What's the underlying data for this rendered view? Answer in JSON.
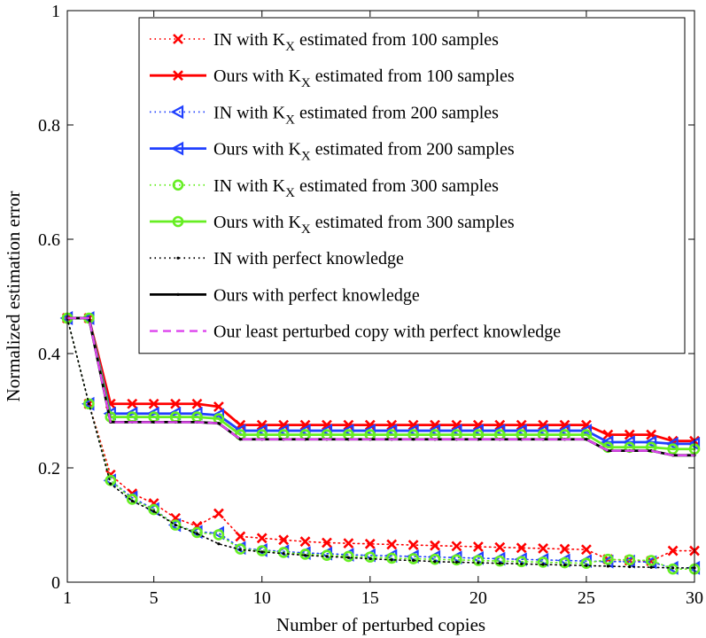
{
  "chart_data": {
    "type": "line",
    "xlabel": "Number of perturbed copies",
    "ylabel": "Normalized estimation error",
    "xlim": [
      1,
      30
    ],
    "ylim": [
      0,
      1
    ],
    "xticks": [
      1,
      5,
      10,
      15,
      20,
      25,
      30
    ],
    "yticks": [
      0,
      0.2,
      0.4,
      0.6,
      0.8,
      1
    ],
    "ytick_labels": [
      "0",
      "0.2",
      "0.4",
      "0.6",
      "0.8",
      "1"
    ],
    "legend_position": "top-right",
    "x": [
      1,
      2,
      3,
      4,
      5,
      6,
      7,
      8,
      9,
      10,
      11,
      12,
      13,
      14,
      15,
      16,
      17,
      18,
      19,
      20,
      21,
      22,
      23,
      24,
      25,
      26,
      27,
      28,
      29,
      30
    ],
    "series": [
      {
        "legend": {
          "pre": "IN with K",
          "sub": "X",
          "post": " estimated from 100 samples"
        },
        "color": "#ff0000",
        "style": "dotted",
        "marker": "x",
        "values": [
          0.462,
          0.312,
          0.188,
          0.155,
          0.138,
          0.112,
          0.098,
          0.12,
          0.08,
          0.077,
          0.074,
          0.071,
          0.069,
          0.068,
          0.067,
          0.066,
          0.065,
          0.064,
          0.063,
          0.062,
          0.061,
          0.06,
          0.059,
          0.058,
          0.057,
          0.04,
          0.038,
          0.037,
          0.055,
          0.055
        ]
      },
      {
        "legend": {
          "pre": "Ours with K",
          "sub": "X",
          "post": " estimated from 100 samples"
        },
        "color": "#ff0000",
        "style": "solid",
        "marker": "x",
        "values": [
          0.462,
          0.462,
          0.312,
          0.312,
          0.312,
          0.312,
          0.312,
          0.307,
          0.275,
          0.275,
          0.275,
          0.275,
          0.275,
          0.275,
          0.275,
          0.275,
          0.275,
          0.275,
          0.275,
          0.275,
          0.275,
          0.275,
          0.275,
          0.275,
          0.275,
          0.258,
          0.258,
          0.258,
          0.247,
          0.247
        ]
      },
      {
        "legend": {
          "pre": "IN with K",
          "sub": "X",
          "post": " estimated from 200 samples"
        },
        "color": "#2040ff",
        "style": "dotted",
        "marker": "triangle-left",
        "values": [
          0.462,
          0.312,
          0.178,
          0.148,
          0.128,
          0.1,
          0.088,
          0.086,
          0.06,
          0.056,
          0.054,
          0.051,
          0.05,
          0.048,
          0.047,
          0.046,
          0.045,
          0.044,
          0.043,
          0.042,
          0.041,
          0.04,
          0.039,
          0.038,
          0.037,
          0.036,
          0.036,
          0.035,
          0.025,
          0.025
        ]
      },
      {
        "legend": {
          "pre": "Ours with K",
          "sub": "X",
          "post": " estimated from 200 samples"
        },
        "color": "#2040ff",
        "style": "solid",
        "marker": "triangle-left",
        "values": [
          0.462,
          0.462,
          0.295,
          0.295,
          0.295,
          0.295,
          0.295,
          0.292,
          0.265,
          0.265,
          0.265,
          0.265,
          0.265,
          0.265,
          0.265,
          0.265,
          0.265,
          0.265,
          0.265,
          0.265,
          0.265,
          0.265,
          0.265,
          0.265,
          0.265,
          0.245,
          0.245,
          0.245,
          0.242,
          0.242
        ]
      },
      {
        "legend": {
          "pre": "IN with K",
          "sub": "X",
          "post": " estimated from 300 samples"
        },
        "color": "#66ee22",
        "style": "dotted",
        "marker": "circle",
        "values": [
          0.462,
          0.312,
          0.178,
          0.145,
          0.127,
          0.1,
          0.087,
          0.083,
          0.058,
          0.055,
          0.052,
          0.049,
          0.047,
          0.045,
          0.044,
          0.042,
          0.041,
          0.04,
          0.039,
          0.038,
          0.037,
          0.036,
          0.035,
          0.034,
          0.033,
          0.04,
          0.039,
          0.038,
          0.023,
          0.023
        ]
      },
      {
        "legend": {
          "pre": "Ours with K",
          "sub": "X",
          "post": " estimated from 300 samples"
        },
        "color": "#66ee22",
        "style": "solid",
        "marker": "circle",
        "values": [
          0.462,
          0.462,
          0.289,
          0.289,
          0.289,
          0.289,
          0.289,
          0.286,
          0.258,
          0.258,
          0.258,
          0.258,
          0.258,
          0.258,
          0.258,
          0.258,
          0.258,
          0.258,
          0.258,
          0.258,
          0.258,
          0.258,
          0.258,
          0.258,
          0.258,
          0.236,
          0.236,
          0.236,
          0.233,
          0.233
        ]
      },
      {
        "legend": {
          "pre": "IN with perfect knowledge",
          "sub": "",
          "post": ""
        },
        "color": "#000000",
        "style": "dotted",
        "marker": "dot",
        "values": [
          0.462,
          0.312,
          0.172,
          0.142,
          0.124,
          0.1,
          0.085,
          0.067,
          0.057,
          0.053,
          0.05,
          0.047,
          0.045,
          0.043,
          0.041,
          0.039,
          0.038,
          0.036,
          0.035,
          0.034,
          0.033,
          0.032,
          0.031,
          0.03,
          0.029,
          0.028,
          0.027,
          0.026,
          0.025,
          0.025
        ]
      },
      {
        "legend": {
          "pre": "Ours with perfect knowledge",
          "sub": "",
          "post": ""
        },
        "color": "#000000",
        "style": "solid",
        "marker": "dot",
        "values": [
          0.462,
          0.462,
          0.28,
          0.28,
          0.28,
          0.28,
          0.28,
          0.278,
          0.25,
          0.25,
          0.25,
          0.25,
          0.25,
          0.25,
          0.25,
          0.25,
          0.25,
          0.25,
          0.25,
          0.25,
          0.25,
          0.25,
          0.25,
          0.25,
          0.25,
          0.23,
          0.23,
          0.23,
          0.222,
          0.222
        ]
      },
      {
        "legend": {
          "pre": "Our least perturbed copy with perfect knowledge",
          "sub": "",
          "post": ""
        },
        "color": "#dd44ee",
        "style": "dashed",
        "marker": "none",
        "values": [
          0.462,
          0.462,
          0.28,
          0.28,
          0.28,
          0.28,
          0.28,
          0.278,
          0.25,
          0.25,
          0.25,
          0.25,
          0.25,
          0.25,
          0.25,
          0.25,
          0.25,
          0.25,
          0.25,
          0.25,
          0.25,
          0.25,
          0.25,
          0.25,
          0.25,
          0.23,
          0.23,
          0.23,
          0.222,
          0.222
        ]
      }
    ]
  }
}
